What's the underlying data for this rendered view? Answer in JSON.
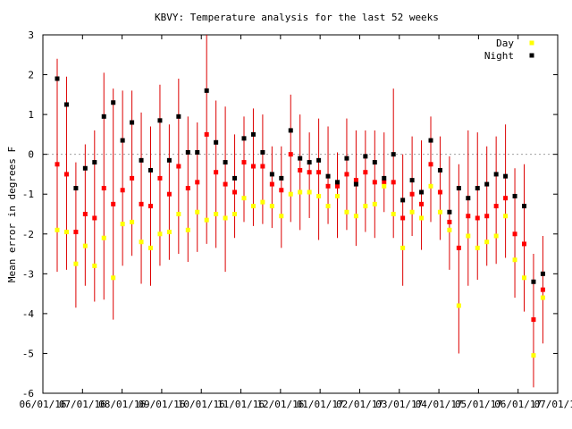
{
  "chart_data": {
    "type": "scatter",
    "title": "KBVY: Temperature analysis for the last 52 weeks",
    "ylabel": "Mean error in degrees F",
    "xlabel": "",
    "ylim": [
      -6,
      3
    ],
    "yticks": [
      3,
      2,
      1,
      0,
      -1,
      -2,
      -3,
      -4,
      -5,
      -6
    ],
    "xticks": [
      "06/01/16",
      "07/01/16",
      "08/01/16",
      "09/01/16",
      "10/01/16",
      "11/01/16",
      "12/01/16",
      "01/01/17",
      "02/01/17",
      "03/01/17",
      "04/01/17",
      "05/01/17",
      "06/01/17",
      "07/01/17"
    ],
    "grid": false,
    "zero_line": true,
    "legend_position": "top-right",
    "colors": {
      "day": "#ffff00",
      "night": "#000000",
      "mean": "#ff0000",
      "errbar": "#dd0000",
      "zero": "#a0a0a0"
    },
    "series": [
      {
        "name": "Day",
        "key": "day",
        "values": [
          -1.9,
          -1.95,
          -2.75,
          -2.3,
          -2.8,
          -2.1,
          -3.1,
          -1.75,
          -1.7,
          -2.2,
          -2.35,
          -2,
          -1.95,
          -1.5,
          -1.9,
          -1.45,
          -1.65,
          -1.5,
          -1.6,
          -1.5,
          -1.1,
          -1.3,
          -1.2,
          -1.3,
          -1.55,
          -1,
          -0.95,
          -0.95,
          -1.05,
          -1.3,
          -1.05,
          -1.45,
          -1.55,
          -1.3,
          -1.25,
          -0.8,
          -1.5,
          -2.35,
          -1.45,
          -1.6,
          -0.8,
          -1.45,
          -1.9,
          -3.8,
          -2.05,
          -2.35,
          -2.2,
          -2.05,
          -1.55,
          -2.65,
          -3.1,
          -5.05,
          -3.6
        ]
      },
      {
        "name": "Night",
        "key": "night",
        "values": [
          1.9,
          1.25,
          -0.85,
          -0.35,
          -0.2,
          0.95,
          1.3,
          0.35,
          0.8,
          -0.15,
          -0.4,
          0.85,
          -0.15,
          0.95,
          0.05,
          0.05,
          1.6,
          0.3,
          -0.2,
          -0.6,
          0.4,
          0.5,
          0.05,
          -0.5,
          -0.6,
          0.6,
          -0.1,
          -0.2,
          -0.15,
          -0.55,
          -0.7,
          -0.1,
          -0.75,
          -0.05,
          -0.2,
          -0.6,
          0.0,
          -1.15,
          -0.65,
          -0.95,
          0.35,
          -0.4,
          -1.45,
          -0.85,
          -1.1,
          -0.85,
          -0.75,
          -0.5,
          -0.55,
          -1.05,
          -1.3,
          -3.2,
          -3.0
        ]
      },
      {
        "name": "",
        "key": "mean",
        "values": [
          -0.25,
          -0.5,
          -1.95,
          -1.5,
          -1.6,
          -0.85,
          -1.25,
          -0.9,
          -0.6,
          -1.25,
          -1.3,
          -0.6,
          -1,
          -0.3,
          -0.85,
          -0.7,
          0.5,
          -0.45,
          -0.75,
          -0.95,
          -0.2,
          -0.3,
          -0.3,
          -0.75,
          -0.9,
          0.0,
          -0.4,
          -0.45,
          -0.45,
          -0.8,
          -0.8,
          -0.5,
          -0.65,
          -0.45,
          -0.7,
          -0.7,
          -0.7,
          -1.6,
          -1,
          -1.25,
          -0.25,
          -0.95,
          -1.7,
          -2.35,
          -1.55,
          -1.6,
          -1.55,
          -1.3,
          -1.1,
          -2.0,
          -2.25,
          -4.15,
          -3.4
        ]
      },
      {
        "name": "",
        "key": "err_low",
        "values": [
          -2.95,
          -2.9,
          -3.85,
          -3.3,
          -3.7,
          -3.65,
          -4.15,
          -2.8,
          -2.55,
          -3.25,
          -3.3,
          -2.8,
          -2.65,
          -2.5,
          -2.7,
          -2.45,
          -2.25,
          -2.35,
          -2.95,
          -2.1,
          -1.7,
          -1.8,
          -1.75,
          -1.85,
          -2.35,
          -1.7,
          -1.9,
          -1.6,
          -2.15,
          -1.75,
          -2.1,
          -1.9,
          -2.3,
          -1.95,
          -2.1,
          -1.45,
          -2.1,
          -3.3,
          -2.05,
          -2.4,
          -1.7,
          -2.15,
          -2.9,
          -5.0,
          -3.3,
          -3.15,
          -2.8,
          -2.75,
          -2.6,
          -3.6,
          -3.95,
          -5.85,
          -4.75
        ]
      },
      {
        "name": "",
        "key": "err_high",
        "values": [
          2.4,
          1.95,
          -0.2,
          0.25,
          0.6,
          2.05,
          1.65,
          1.6,
          1.6,
          1.05,
          0.7,
          1.75,
          0.75,
          1.9,
          0.95,
          0.8,
          3.0,
          1.35,
          1.2,
          0.5,
          0.95,
          1.15,
          1.0,
          0.2,
          0.2,
          1.5,
          1.0,
          0.55,
          0.9,
          0.7,
          0.05,
          0.9,
          0.6,
          0.6,
          0.6,
          0.55,
          1.65,
          0.0,
          0.45,
          0.35,
          0.95,
          0.45,
          -0.05,
          -0.25,
          0.6,
          0.55,
          0.2,
          0.45,
          0.75,
          -0.35,
          -0.25,
          -2.5,
          -2.05
        ]
      }
    ],
    "legend": [
      {
        "label": "Day",
        "key": "day"
      },
      {
        "label": "Night",
        "key": "night"
      }
    ]
  }
}
